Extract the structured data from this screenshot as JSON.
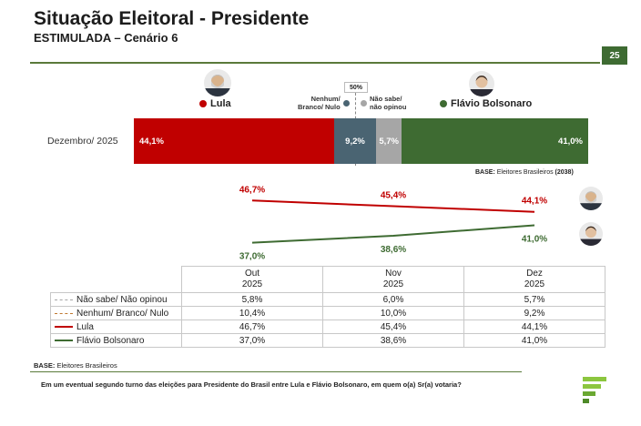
{
  "header": {
    "title": "Situação Eleitoral - Presidente",
    "subtitle": "ESTIMULADA – Cenário 6",
    "page_number": "25"
  },
  "candidates": {
    "lula": {
      "label": "Lula",
      "color": "#c00000"
    },
    "flavio": {
      "label": "Flávio Bolsonaro",
      "color": "#3e6b32"
    },
    "nenhum": {
      "label_line1": "Nenhum/",
      "label_line2": "Branco/ Nulo",
      "color": "#4a6472"
    },
    "nao_sabe": {
      "label_line1": "Não sabe/",
      "label_line2": "não opinou",
      "color": "#a6a6a6"
    }
  },
  "fifty_marker": "50%",
  "base_top": {
    "label": "BASE:",
    "text": "Eleitores Brasileiros",
    "count": "(2038)"
  },
  "base_bottom": {
    "label": "BASE:",
    "text": "Eleitores Brasileiros"
  },
  "question": "Em um eventual segundo turno das eleições para Presidente do Brasil entre Lula e Flávio Bolsonaro, em quem o(a) Sr(a) votaria?",
  "chart_data": [
    {
      "type": "bar",
      "stacked": true,
      "orientation": "horizontal",
      "categories": [
        "Dezembro/ 2025"
      ],
      "series": [
        {
          "name": "Lula",
          "values": [
            44.1
          ],
          "label": "44,1%",
          "color": "#c00000"
        },
        {
          "name": "Nenhum/ Branco/ Nulo",
          "values": [
            9.2
          ],
          "label": "9,2%",
          "color": "#4a6472"
        },
        {
          "name": "Não sabe/ não opinou",
          "values": [
            5.7
          ],
          "label": "5,7%",
          "color": "#a6a6a6"
        },
        {
          "name": "Flávio Bolsonaro",
          "values": [
            41.0
          ],
          "label": "41,0%",
          "color": "#3e6b32"
        }
      ],
      "xlim": [
        0,
        100
      ]
    },
    {
      "type": "line",
      "x": [
        "Out",
        "Nov",
        "Dez"
      ],
      "ylim": [
        30,
        52
      ],
      "series": [
        {
          "name": "Lula",
          "values": [
            46.7,
            45.4,
            44.1
          ],
          "labels": [
            "46,7%",
            "45,4%",
            "44,1%"
          ],
          "color": "#c00000"
        },
        {
          "name": "Flávio Bolsonaro",
          "values": [
            37.0,
            38.6,
            41.0
          ],
          "labels": [
            "37,0%",
            "38,6%",
            "41,0%"
          ],
          "color": "#3e6b32"
        }
      ]
    },
    {
      "type": "table",
      "columns": [
        {
          "line1": "Out",
          "line2": "2025"
        },
        {
          "line1": "Nov",
          "line2": "2025"
        },
        {
          "line1": "Dez",
          "line2": "2025"
        }
      ],
      "rows": [
        {
          "label": "Não sabe/ Não opinou",
          "values": [
            "5,8%",
            "6,0%",
            "5,7%"
          ],
          "color": "#a6a6a6",
          "style": "dashed"
        },
        {
          "label": "Nenhum/ Branco/ Nulo",
          "values": [
            "10,4%",
            "10,0%",
            "9,2%"
          ],
          "color": "#c07830",
          "style": "dashed"
        },
        {
          "label": "Lula",
          "values": [
            "46,7%",
            "45,4%",
            "44,1%"
          ],
          "color": "#c00000",
          "style": "solid"
        },
        {
          "label": "Flávio Bolsonaro",
          "values": [
            "37,0%",
            "38,6%",
            "41,0%"
          ],
          "color": "#3e6b32",
          "style": "solid"
        }
      ]
    }
  ]
}
